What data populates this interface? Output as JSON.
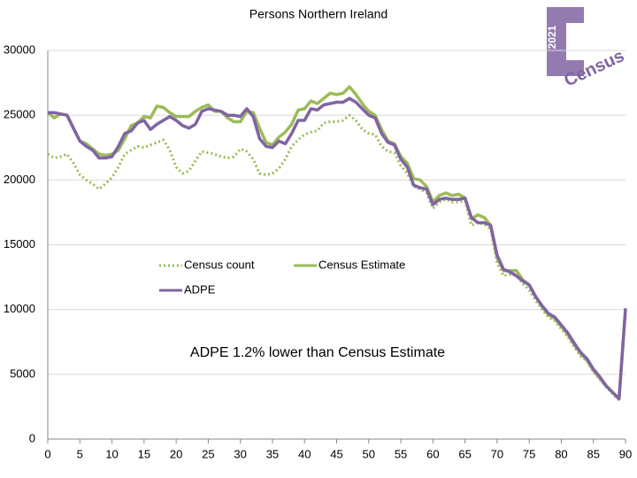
{
  "chart_data": {
    "type": "line",
    "title": "Persons Northern Ireland",
    "annotation": "ADPE 1.2% lower than Census Estimate",
    "logo": {
      "year": "2021",
      "word": "Census"
    },
    "x": [
      0,
      1,
      2,
      3,
      4,
      5,
      6,
      7,
      8,
      9,
      10,
      11,
      12,
      13,
      14,
      15,
      16,
      17,
      18,
      19,
      20,
      21,
      22,
      23,
      24,
      25,
      26,
      27,
      28,
      29,
      30,
      31,
      32,
      33,
      34,
      35,
      36,
      37,
      38,
      39,
      40,
      41,
      42,
      43,
      44,
      45,
      46,
      47,
      48,
      49,
      50,
      51,
      52,
      53,
      54,
      55,
      56,
      57,
      58,
      59,
      60,
      61,
      62,
      63,
      64,
      65,
      66,
      67,
      68,
      69,
      70,
      71,
      72,
      73,
      74,
      75,
      76,
      77,
      78,
      79,
      80,
      81,
      82,
      83,
      84,
      85,
      86,
      87,
      88,
      89,
      90
    ],
    "series": [
      {
        "name": "Census count",
        "color": "#9bbb59",
        "dash": "dotted",
        "values": [
          22000,
          21700,
          21800,
          22000,
          21300,
          20400,
          20000,
          19700,
          19300,
          19700,
          20200,
          21000,
          22000,
          22300,
          22600,
          22500,
          22700,
          22900,
          23100,
          22300,
          21000,
          20500,
          20700,
          21500,
          22200,
          22100,
          22000,
          21800,
          21700,
          21800,
          22400,
          22200,
          21600,
          20500,
          20400,
          20500,
          20900,
          21600,
          22600,
          23100,
          23500,
          23700,
          23800,
          24400,
          24500,
          24500,
          24600,
          25000,
          24600,
          23900,
          23600,
          23500,
          22600,
          22200,
          22100,
          21100,
          20500,
          19500,
          19300,
          19000,
          17800,
          18300,
          18500,
          18300,
          18300,
          18400,
          16500,
          16700,
          16600,
          16200,
          13600,
          12600,
          12700,
          12600,
          12000,
          11500,
          10700,
          10000,
          9400,
          9100,
          8500,
          7900,
          7100,
          6400,
          6000,
          5200,
          4600,
          4000,
          3500,
          3000,
          null
        ]
      },
      {
        "name": "Census Estimate",
        "color": "#9bbb59",
        "dash": "solid",
        "values": [
          25200,
          24800,
          25100,
          25000,
          24000,
          23000,
          22800,
          22400,
          22000,
          21900,
          22000,
          22300,
          23200,
          24200,
          24400,
          24900,
          24800,
          25700,
          25600,
          25200,
          24900,
          24900,
          24900,
          25300,
          25600,
          25800,
          25300,
          25300,
          24800,
          24500,
          24500,
          25300,
          25200,
          24000,
          22900,
          22700,
          23300,
          23700,
          24300,
          25400,
          25500,
          26100,
          25900,
          26300,
          26700,
          26600,
          26700,
          27200,
          26600,
          25900,
          25300,
          25000,
          23900,
          23000,
          22800,
          21800,
          21300,
          20100,
          20000,
          19500,
          18300,
          18800,
          19000,
          18800,
          18900,
          18600,
          17000,
          17300,
          17100,
          16500,
          14000,
          13000,
          13000,
          13000,
          12300,
          11900,
          11000,
          10200,
          9600,
          9300,
          8700,
          8100,
          7300,
          6600,
          6100,
          5300,
          4700,
          4100,
          3600,
          3100,
          10000
        ]
      },
      {
        "name": "ADPE",
        "color": "#8064a2",
        "dash": "solid",
        "values": [
          25200,
          25200,
          25100,
          25000,
          24000,
          23000,
          22600,
          22300,
          21700,
          21700,
          21800,
          22600,
          23600,
          23800,
          24400,
          24600,
          23900,
          24300,
          24600,
          24900,
          24600,
          24200,
          24000,
          24300,
          25300,
          25500,
          25400,
          25300,
          25000,
          25000,
          24900,
          25500,
          24900,
          23200,
          22600,
          22500,
          23000,
          22800,
          23600,
          24600,
          24600,
          25500,
          25400,
          25800,
          25900,
          26000,
          26000,
          26300,
          26000,
          25500,
          25000,
          24800,
          23600,
          22900,
          22700,
          21600,
          21000,
          19600,
          19400,
          19300,
          18100,
          18500,
          18600,
          18500,
          18500,
          18600,
          17100,
          16700,
          16700,
          16500,
          14200,
          13100,
          12900,
          12600,
          12200,
          11900,
          11000,
          10300,
          9700,
          9400,
          8800,
          8200,
          7400,
          6700,
          6200,
          5400,
          4800,
          4100,
          3600,
          3100,
          10100
        ]
      }
    ],
    "xlim": [
      0,
      90
    ],
    "xticks": [
      0,
      5,
      10,
      15,
      20,
      25,
      30,
      35,
      40,
      45,
      50,
      55,
      60,
      65,
      70,
      75,
      80,
      85,
      90
    ],
    "ylim": [
      0,
      30000
    ],
    "yticks": [
      0,
      5000,
      10000,
      15000,
      20000,
      25000,
      30000
    ],
    "grid": true
  }
}
